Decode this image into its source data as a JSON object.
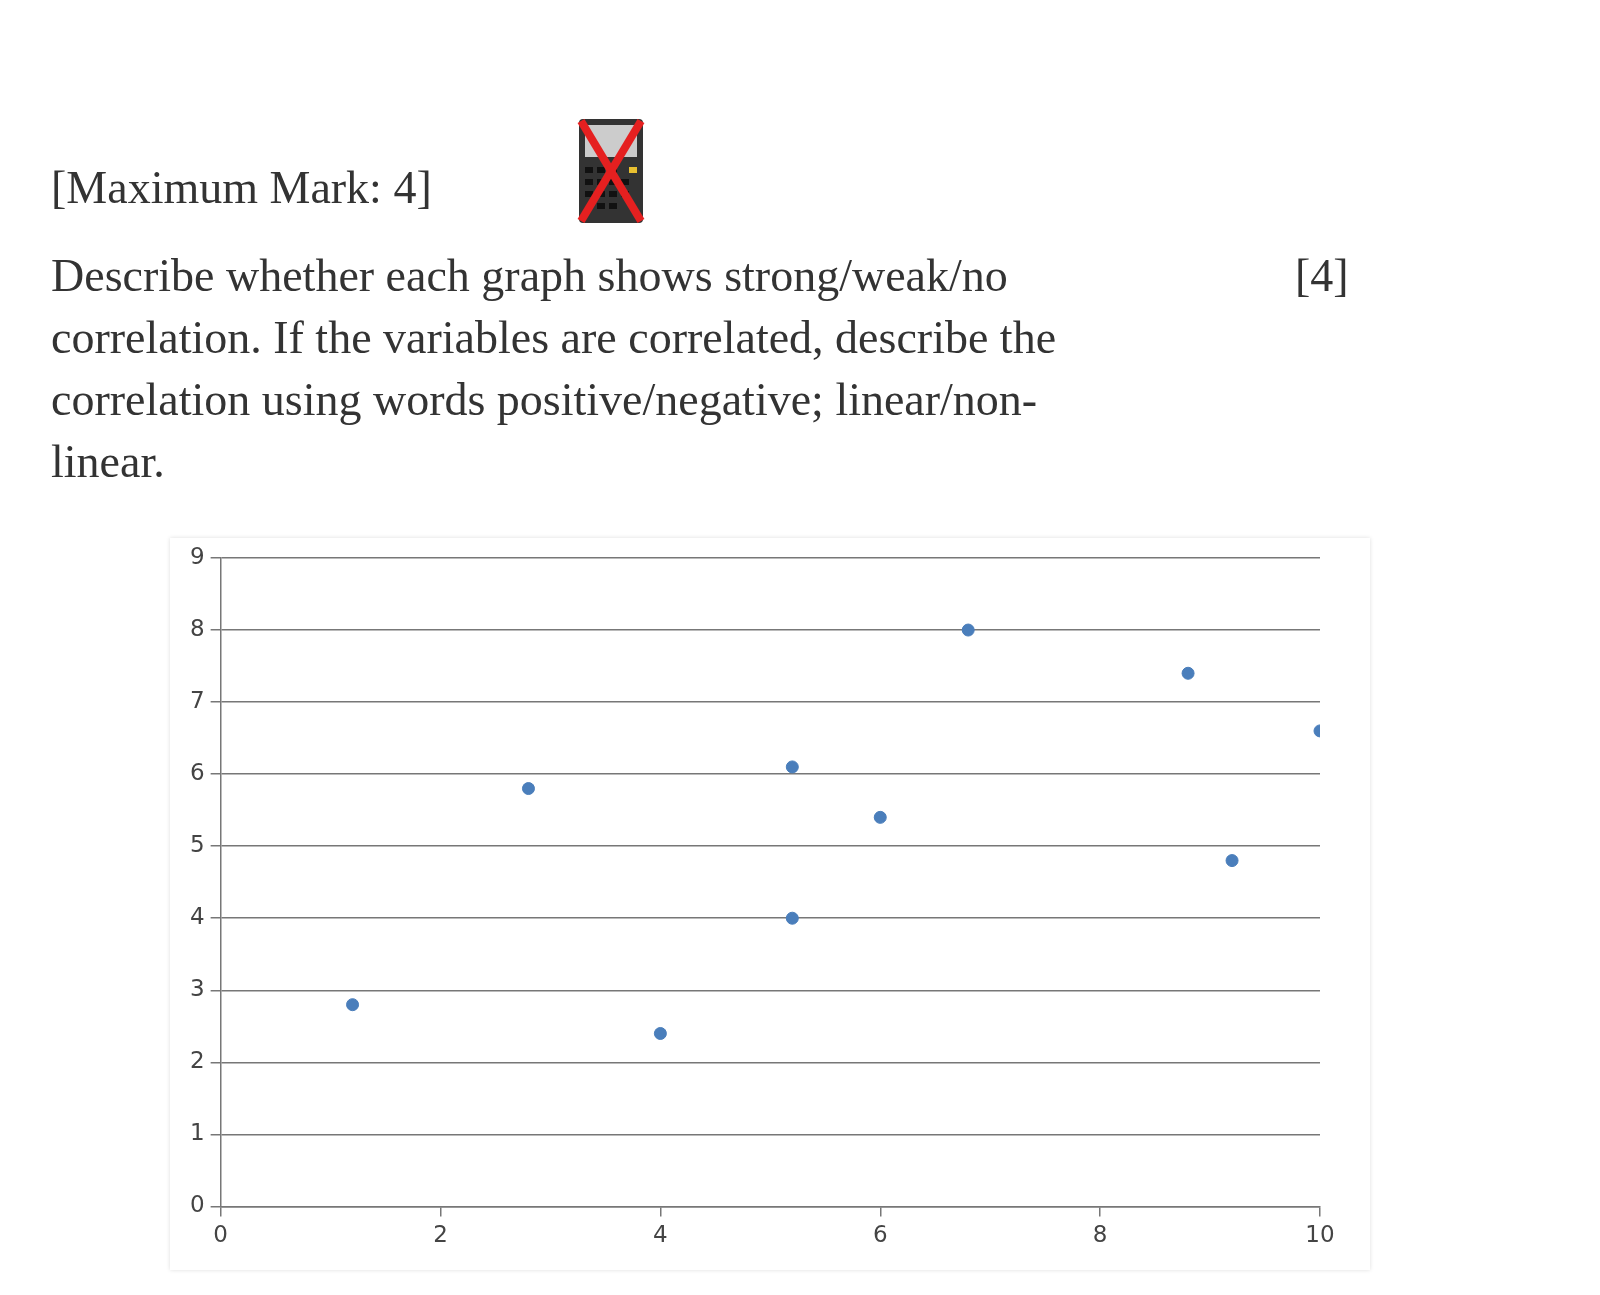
{
  "chart_data": {
    "type": "scatter",
    "title": "[Maximum Mark:  4]",
    "subtitle": "Describe whether each graph shows strong/weak/no correlation. If the variables are correlated, describe the correlation using words positive/negative; linear/non-linear.",
    "annotations": [
      "[4]"
    ],
    "x": [
      1.2,
      2.8,
      4.0,
      5.2,
      5.2,
      6.0,
      6.8,
      8.8,
      9.2,
      10
    ],
    "values": [
      2.8,
      5.8,
      2.4,
      6.1,
      4.0,
      5.4,
      8.0,
      7.4,
      4.8,
      6.6
    ],
    "color": "#4a7ebb",
    "marker": "circle",
    "grid": "y",
    "xlim": [
      0,
      10
    ],
    "xticks": [
      0,
      2,
      4,
      6,
      8,
      10
    ],
    "ylim": [
      0,
      9
    ],
    "yticks": [
      0,
      1,
      2,
      3,
      4,
      5,
      6,
      7,
      8,
      9
    ]
  }
}
